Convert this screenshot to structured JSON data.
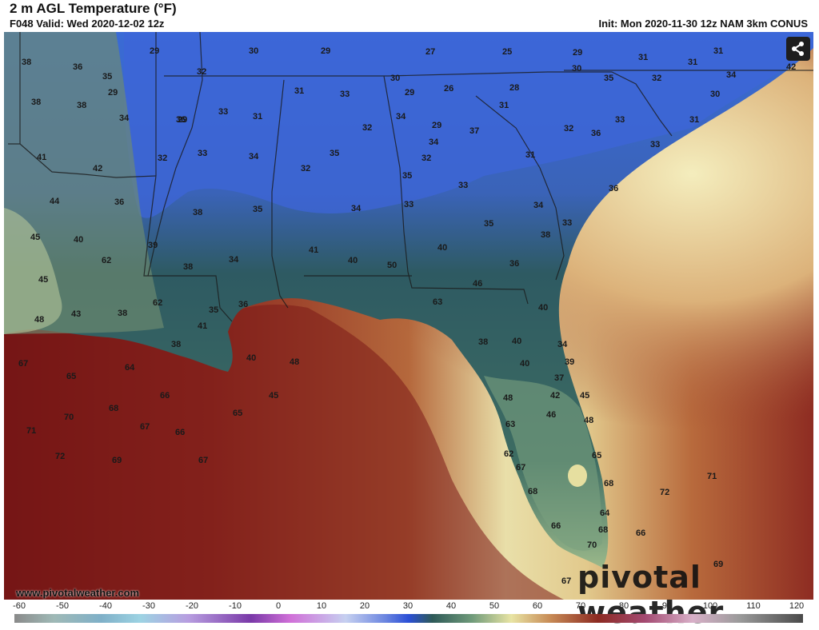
{
  "header": {
    "title": "2 m AGL Temperature (°F)",
    "valid": "F048 Valid: Wed 2020-12-02 12z",
    "init": "Init: Mon 2020-11-30 12z NAM 3km CONUS"
  },
  "footer": {
    "website": "www.pivotalweather.com",
    "logo": "pivotal weather"
  },
  "share": {
    "icon": "share-icon"
  },
  "colors": {
    "cold": "#3d62d8",
    "cool": "#2f5a58",
    "mild": "#e6e3a8",
    "warm": "#a2402c",
    "hot": "#6a0f12"
  },
  "legend": {
    "ticks": [
      "-60",
      "-50",
      "-40",
      "-30",
      "-20",
      "-10",
      "0",
      "10",
      "20",
      "30",
      "40",
      "50",
      "60",
      "70",
      "80",
      "90",
      "100",
      "110",
      "120"
    ]
  },
  "map_values": [
    "38",
    "36",
    "35",
    "29",
    "38",
    "38",
    "34",
    "29",
    "41",
    "42",
    "36",
    "44",
    "45",
    "40",
    "39",
    "45",
    "43",
    "48",
    "29",
    "30",
    "29",
    "27",
    "25",
    "29",
    "31",
    "31",
    "31",
    "34",
    "42",
    "30",
    "33",
    "29",
    "26",
    "28",
    "31",
    "30",
    "35",
    "32",
    "30",
    "31",
    "32",
    "33",
    "31",
    "32",
    "34",
    "29",
    "37",
    "32",
    "36",
    "33",
    "31",
    "34",
    "33",
    "32",
    "36",
    "33",
    "34",
    "35",
    "32",
    "32",
    "31",
    "35",
    "33",
    "36",
    "38",
    "35",
    "34",
    "33",
    "34",
    "33",
    "35",
    "38",
    "38",
    "34",
    "41",
    "40",
    "40",
    "36",
    "50",
    "46",
    "62",
    "62",
    "63",
    "38",
    "35",
    "36",
    "40",
    "41",
    "38",
    "40",
    "48",
    "45",
    "34",
    "38",
    "40",
    "40",
    "39",
    "37",
    "42",
    "45",
    "48",
    "48",
    "46",
    "63",
    "65",
    "62",
    "67",
    "68",
    "68",
    "64",
    "66",
    "68",
    "70",
    "67",
    "71",
    "72",
    "66",
    "69",
    "67",
    "65"
  ]
}
